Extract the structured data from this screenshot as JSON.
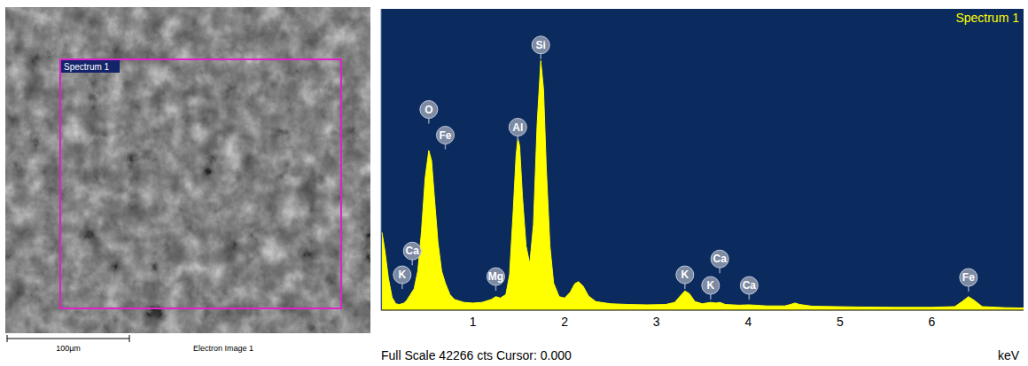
{
  "chart_data": {
    "type": "area",
    "title": "Spectrum 1",
    "x_label": "keV",
    "footer": "Full Scale 42266 cts Cursor: 0.000",
    "x": [
      0.01,
      0.04,
      0.08,
      0.12,
      0.16,
      0.2,
      0.25,
      0.28,
      0.32,
      0.36,
      0.4,
      0.44,
      0.48,
      0.52,
      0.55,
      0.58,
      0.62,
      0.66,
      0.7,
      0.75,
      0.8,
      0.9,
      1.0,
      1.1,
      1.2,
      1.25,
      1.3,
      1.36,
      1.4,
      1.44,
      1.47,
      1.49,
      1.51,
      1.54,
      1.58,
      1.62,
      1.66,
      1.7,
      1.74,
      1.77,
      1.8,
      1.84,
      1.88,
      1.94,
      2.0,
      2.06,
      2.11,
      2.15,
      2.2,
      2.26,
      2.34,
      2.5,
      2.7,
      2.9,
      3.1,
      3.2,
      3.26,
      3.31,
      3.36,
      3.42,
      3.5,
      3.59,
      3.65,
      3.69,
      3.75,
      3.9,
      4.01,
      4.2,
      4.4,
      4.46,
      4.51,
      4.56,
      4.7,
      4.95,
      5.2,
      5.6,
      6.0,
      6.25,
      6.33,
      6.4,
      6.46,
      6.55,
      6.8,
      7.0
    ],
    "values": [
      10900,
      8500,
      4500,
      1800,
      900,
      800,
      1000,
      1400,
      2200,
      3000,
      5500,
      11000,
      18500,
      22400,
      21000,
      16000,
      9500,
      5500,
      3800,
      2200,
      1500,
      1100,
      1000,
      1100,
      1500,
      1900,
      1700,
      2200,
      5000,
      14000,
      21500,
      24200,
      23000,
      16000,
      9000,
      6500,
      12000,
      26000,
      35000,
      31000,
      20000,
      9000,
      3800,
      1900,
      1700,
      2500,
      3700,
      4000,
      3400,
      2000,
      1200,
      900,
      800,
      750,
      800,
      1100,
      2000,
      2700,
      2300,
      1200,
      900,
      1100,
      1000,
      1100,
      800,
      700,
      750,
      600,
      600,
      800,
      1000,
      800,
      550,
      500,
      450,
      400,
      400,
      500,
      1200,
      1900,
      1400,
      500,
      350,
      300
    ],
    "color": "#ffff00",
    "xlim": [
      0,
      7
    ],
    "xticks": [
      1,
      2,
      3,
      4,
      5,
      6
    ],
    "ylim": [
      0,
      42266
    ],
    "tick_labels": "x",
    "grid": false,
    "annotations": [
      {
        "text": "O",
        "x": 0.52,
        "y": 28150
      },
      {
        "text": "Fe",
        "x": 0.7,
        "y": 24550
      },
      {
        "text": "Ca",
        "x": 0.34,
        "y": 8300
      },
      {
        "text": "K",
        "x": 0.23,
        "y": 4960
      },
      {
        "text": "Mg",
        "x": 1.25,
        "y": 4710
      },
      {
        "text": "Al",
        "x": 1.49,
        "y": 25670
      },
      {
        "text": "Si",
        "x": 1.74,
        "y": 37200
      },
      {
        "text": "K",
        "x": 3.31,
        "y": 4960
      },
      {
        "text": "Ca",
        "x": 3.69,
        "y": 7190
      },
      {
        "text": "K",
        "x": 3.59,
        "y": 3470
      },
      {
        "text": "Ca",
        "x": 4.01,
        "y": 3470
      },
      {
        "text": "Fe",
        "x": 6.4,
        "y": 4590
      }
    ]
  },
  "image": {
    "label": "Spectrum 1",
    "scale_bar": "100µm",
    "caption": "Electron Image 1"
  }
}
